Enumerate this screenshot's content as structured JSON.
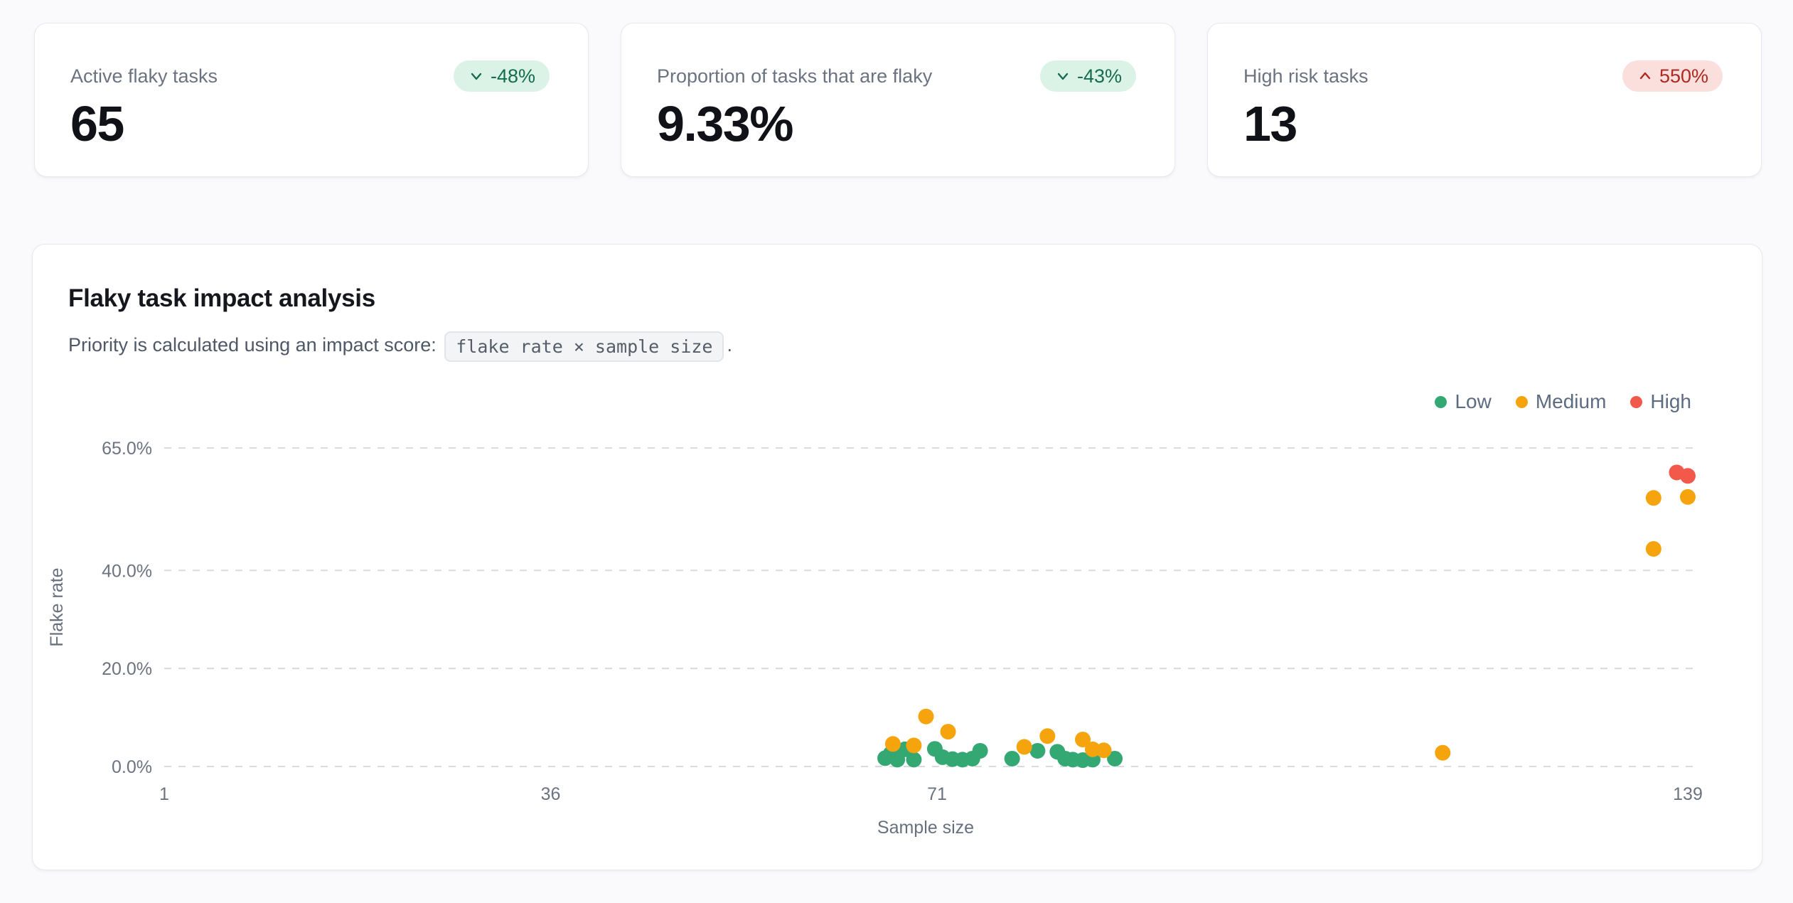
{
  "stats": [
    {
      "label": "Active flaky tasks",
      "value": "65",
      "delta": "-48%",
      "direction": "down",
      "tone": "positive"
    },
    {
      "label": "Proportion of tasks that are flaky",
      "value": "9.33%",
      "delta": "-43%",
      "direction": "down",
      "tone": "positive"
    },
    {
      "label": "High risk tasks",
      "value": "13",
      "delta": "550%",
      "direction": "up",
      "tone": "negative"
    }
  ],
  "chart_card": {
    "title": "Flaky task impact analysis",
    "subtitle_prefix": "Priority is calculated using an impact score:",
    "formula_chip": "flake rate × sample size",
    "subtitle_suffix": "."
  },
  "chart_data": {
    "type": "scatter",
    "title": "Flaky task impact analysis",
    "xlabel": "Sample size",
    "ylabel": "Flake rate",
    "xlim": [
      1,
      139
    ],
    "ylim": [
      0,
      65
    ],
    "x_ticks": [
      1,
      36,
      71,
      139
    ],
    "y_ticks": [
      {
        "value": 65,
        "label": "65.0%"
      },
      {
        "value": 40,
        "label": "40.0%"
      },
      {
        "value": 20,
        "label": "20.0%"
      },
      {
        "value": 0,
        "label": "0.0%"
      }
    ],
    "grid": "horizontal-dashed",
    "legend_position": "top-right",
    "point_radius": 11,
    "series": [
      {
        "name": "Low",
        "color": "#34A873",
        "points": [
          [
            66.3,
            1.7
          ],
          [
            66.8,
            2.6
          ],
          [
            67.4,
            1.4
          ],
          [
            68.1,
            3.5
          ],
          [
            68.9,
            1.4
          ],
          [
            70.8,
            3.6
          ],
          [
            71.5,
            1.9
          ],
          [
            72.4,
            1.5
          ],
          [
            73.3,
            1.4
          ],
          [
            74.2,
            1.6
          ],
          [
            74.9,
            3.2
          ],
          [
            77.8,
            1.6
          ],
          [
            80.1,
            3.2
          ],
          [
            81.9,
            3.0
          ],
          [
            82.6,
            1.6
          ],
          [
            83.3,
            1.4
          ],
          [
            84.2,
            1.3
          ],
          [
            85.1,
            1.4
          ],
          [
            87.1,
            1.6
          ]
        ]
      },
      {
        "name": "Medium",
        "color": "#F6A40E",
        "points": [
          [
            67.0,
            4.6
          ],
          [
            68.9,
            4.3
          ],
          [
            70.0,
            10.2
          ],
          [
            72.0,
            7.1
          ],
          [
            78.9,
            4.0
          ],
          [
            81.0,
            6.2
          ],
          [
            84.2,
            5.5
          ],
          [
            85.1,
            3.5
          ],
          [
            86.1,
            3.3
          ],
          [
            116.8,
            2.8
          ],
          [
            135.9,
            44.4
          ],
          [
            135.9,
            54.8
          ],
          [
            139.0,
            55.0
          ]
        ]
      },
      {
        "name": "High",
        "color": "#F2594B",
        "points": [
          [
            138.0,
            60.0
          ],
          [
            139.0,
            59.3
          ]
        ]
      }
    ]
  },
  "colors": {
    "page_bg": "#FAFAFC",
    "card_bg": "#FFFFFF",
    "card_border": "#E7E7EC",
    "grid_line": "#D7DADF",
    "badge_positive_bg": "#DBF2E6",
    "badge_positive_fg": "#156C50",
    "badge_negative_bg": "#FBDFDD",
    "badge_negative_fg": "#AC2A1F"
  }
}
